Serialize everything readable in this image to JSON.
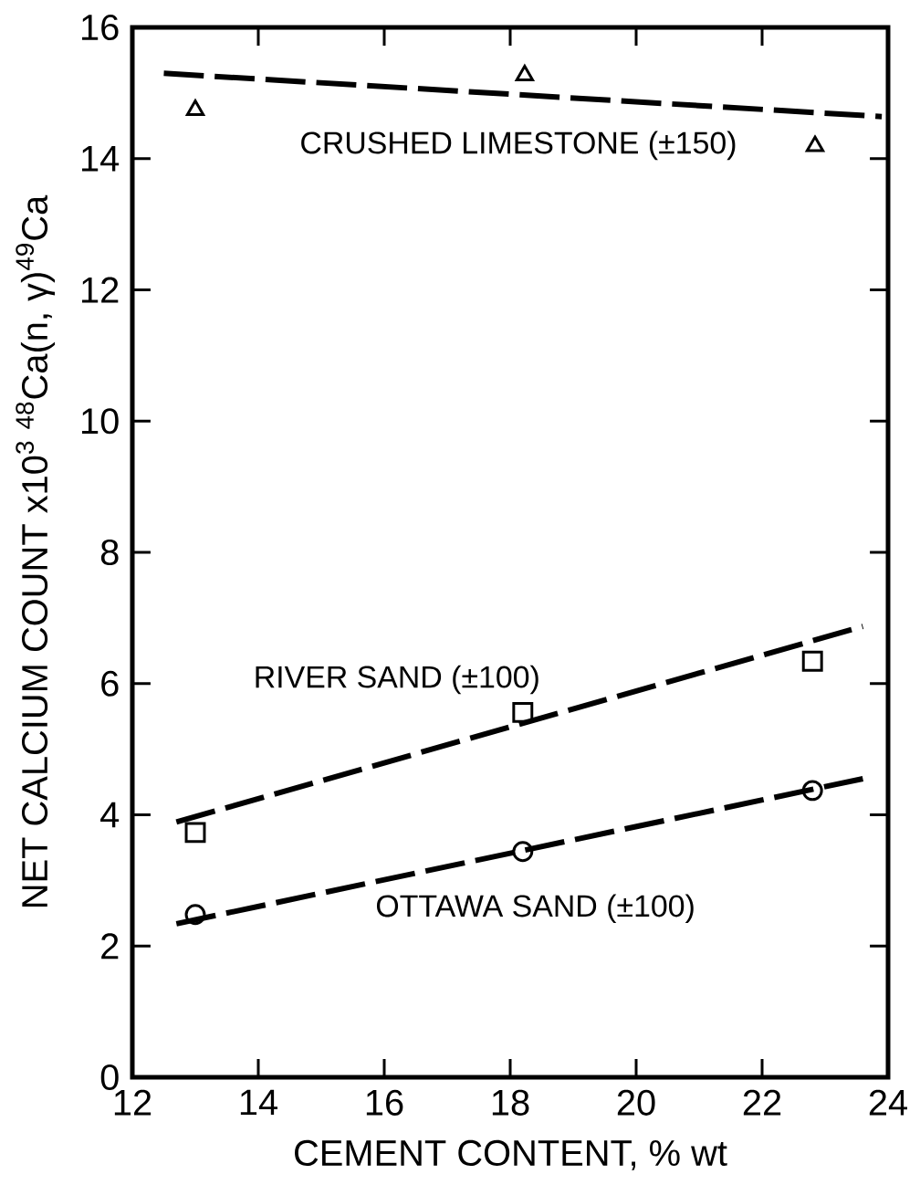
{
  "chart_data": {
    "type": "scatter",
    "xlabel": "CEMENT CONTENT, % wt",
    "ylabel": "NET CALCIUM COUNT x10$^{3}$ $^{48}$Ca(n, γ)$^{49}$Ca",
    "xlim": [
      12,
      24
    ],
    "xticks": [
      12,
      14,
      16,
      18,
      20,
      22,
      24
    ],
    "ylim": [
      0,
      16
    ],
    "yticks": [
      0,
      2,
      4,
      6,
      8,
      10,
      12,
      14,
      16
    ],
    "grid": false,
    "series": [
      {
        "name": "CRUSHED LIMESTONE (±150)",
        "color": "#000000",
        "marker": "triangle",
        "x": [
          13.0,
          18.23,
          22.84
        ],
        "values": [
          14.74,
          15.27,
          14.19
        ]
      },
      {
        "name": "RIVER SAND (±100)",
        "color": "#000000",
        "marker": "square",
        "x": [
          13.0,
          18.2,
          22.8
        ],
        "values": [
          3.73,
          5.56,
          6.34
        ]
      },
      {
        "name": "OTTAWA SAND (±100)",
        "color": "#000000",
        "marker": "circle",
        "x": [
          13.0,
          18.2,
          22.8
        ],
        "values": [
          2.48,
          3.44,
          4.37
        ]
      },
      {
        "type": "line",
        "color": "#000000",
        "line_style": "dashed",
        "marker": "none",
        "x": [
          12.5,
          23.9
        ],
        "values": [
          15.3,
          14.64
        ]
      },
      {
        "type": "line",
        "color": "#000000",
        "line_style": "dashed",
        "marker": "none",
        "x": [
          12.7,
          23.6
        ],
        "values": [
          3.89,
          6.87
        ]
      },
      {
        "type": "line",
        "color": "#000000",
        "line_style": "dashed",
        "marker": "none",
        "x": [
          12.7,
          23.6
        ],
        "values": [
          2.34,
          4.55
        ]
      }
    ]
  }
}
